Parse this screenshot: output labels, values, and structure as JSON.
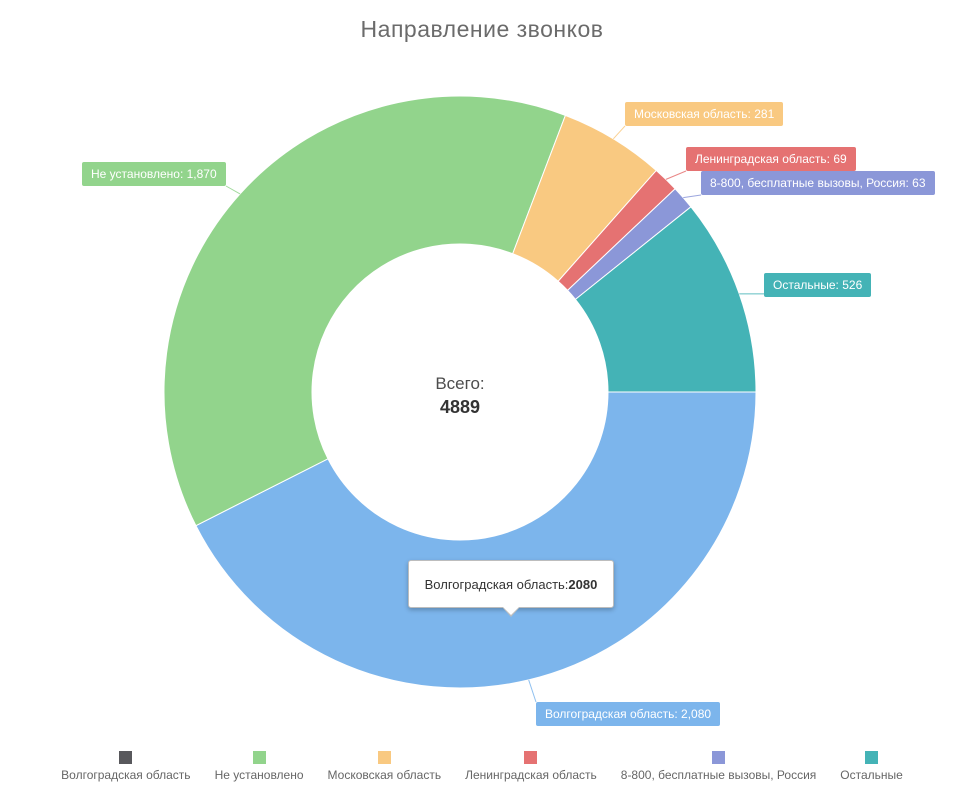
{
  "title": "Направление звонков",
  "chart_data": {
    "type": "pie",
    "subtype": "donut",
    "start_angle_clockwise_from_top_deg": 90,
    "direction": "clockwise",
    "total": 4889,
    "center_label": {
      "line1": "Всего:",
      "line2": "4889"
    },
    "segments": [
      {
        "slug": "volgograd-region",
        "label": "Волгоградская область",
        "value": 2080,
        "display": "Волгоградская область: 2,080",
        "color": "#7cb5ec"
      },
      {
        "slug": "not-identified",
        "label": "Не установлено",
        "value": 1870,
        "display": "Не установлено: 1,870",
        "color": "#92d48c"
      },
      {
        "slug": "moscow-region",
        "label": "Московская область",
        "value": 281,
        "display": "Московская область: 281",
        "color": "#f9c981"
      },
      {
        "slug": "leningrad-region",
        "label": "Ленинградская область",
        "value": 69,
        "display": "Ленинградская область: 69",
        "color": "#e57272"
      },
      {
        "slug": "8800-tollfree-russia",
        "label": "8-800, бесплатные вызовы, Россия",
        "value": 63,
        "display": "8-800, бесплатные вызовы, Россия: 63",
        "color": "#8b97d8"
      },
      {
        "slug": "others",
        "label": "Остальные",
        "value": 526,
        "display": "Остальные: 526",
        "color": "#44b3b6"
      }
    ]
  },
  "tooltip": {
    "label": "Волгоградская область: ",
    "value": "2080"
  },
  "legend": {
    "items": [
      {
        "label": "Волгоградская область",
        "color": "#58585c"
      },
      {
        "label": "Не установлено",
        "color": "#92d48c"
      },
      {
        "label": "Московская область",
        "color": "#f9c981"
      },
      {
        "label": "Ленинградская область",
        "color": "#e57272"
      },
      {
        "label": "8-800, бесплатные вызовы, Россия",
        "color": "#8b97d8"
      },
      {
        "label": "Остальные",
        "color": "#44b3b6"
      }
    ]
  }
}
